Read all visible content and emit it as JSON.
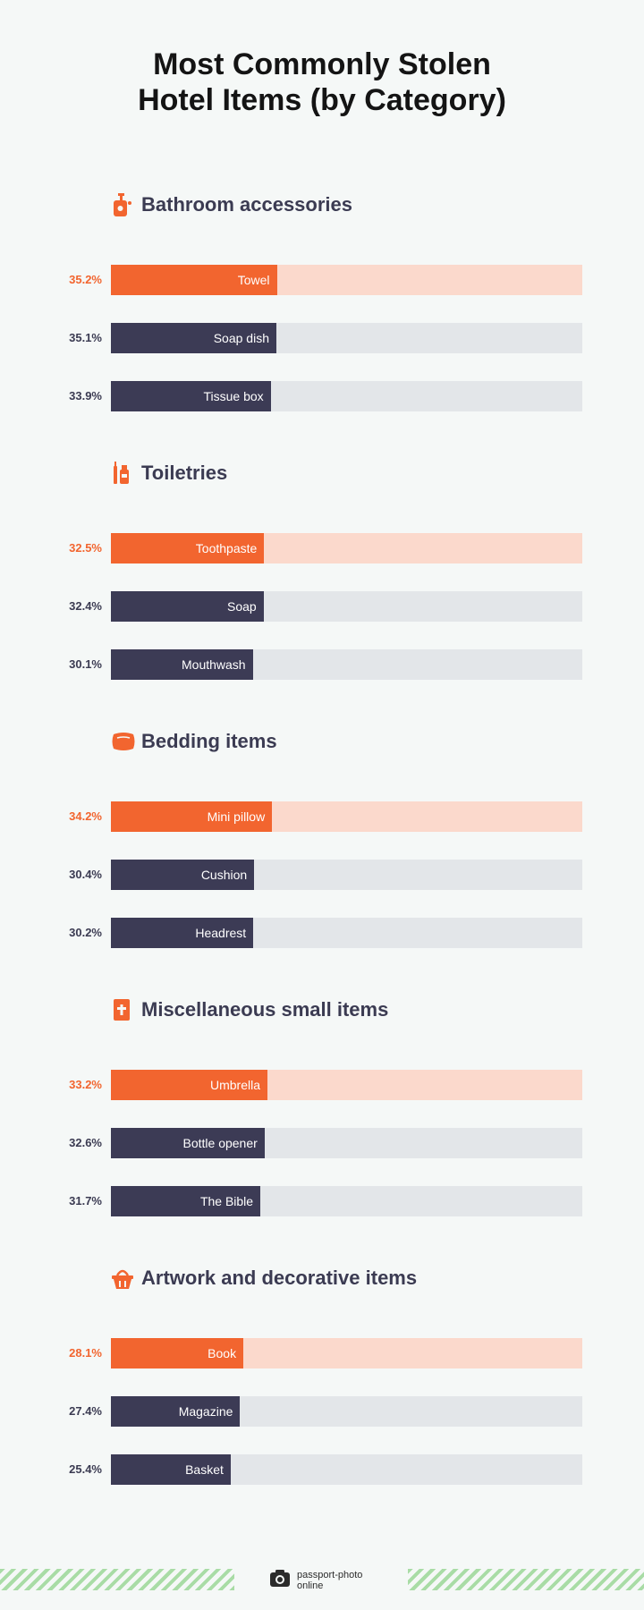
{
  "title": {
    "line1": "Most Commonly Stolen",
    "line2": "Hotel Items (by Category)"
  },
  "colors": {
    "accent": "#f2652f",
    "accent_track": "#fbd9cc",
    "bar": "#3c3b55",
    "track": "#e3e6e9",
    "footer_stripe": "#a9dca6"
  },
  "chart_data": {
    "type": "bar",
    "orientation": "horizontal",
    "xlim": [
      0,
      100
    ],
    "unit": "%",
    "groups": [
      {
        "name": "Bathroom accessories",
        "icon": "soap-dispenser-icon",
        "items": [
          {
            "label": "Towel",
            "value": 35.2,
            "display": "35.2%",
            "highlight": true
          },
          {
            "label": "Soap dish",
            "value": 35.1,
            "display": "35.1%",
            "highlight": false
          },
          {
            "label": "Tissue box",
            "value": 33.9,
            "display": "33.9%",
            "highlight": false
          }
        ]
      },
      {
        "name": "Toiletries",
        "icon": "toiletries-icon",
        "items": [
          {
            "label": "Toothpaste",
            "value": 32.5,
            "display": "32.5%",
            "highlight": true
          },
          {
            "label": "Soap",
            "value": 32.4,
            "display": "32.4%",
            "highlight": false
          },
          {
            "label": "Mouthwash",
            "value": 30.1,
            "display": "30.1%",
            "highlight": false
          }
        ]
      },
      {
        "name": "Bedding items",
        "icon": "pillow-icon",
        "items": [
          {
            "label": "Mini pillow",
            "value": 34.2,
            "display": "34.2%",
            "highlight": true
          },
          {
            "label": "Cushion",
            "value": 30.4,
            "display": "30.4%",
            "highlight": false
          },
          {
            "label": "Headrest",
            "value": 30.2,
            "display": "30.2%",
            "highlight": false
          }
        ]
      },
      {
        "name": "Miscellaneous small items",
        "icon": "bible-icon",
        "items": [
          {
            "label": "Umbrella",
            "value": 33.2,
            "display": "33.2%",
            "highlight": true
          },
          {
            "label": "Bottle opener",
            "value": 32.6,
            "display": "32.6%",
            "highlight": false
          },
          {
            "label": "The Bible",
            "value": 31.7,
            "display": "31.7%",
            "highlight": false
          }
        ]
      },
      {
        "name": "Artwork and decorative items",
        "icon": "basket-icon",
        "items": [
          {
            "label": "Book",
            "value": 28.1,
            "display": "28.1%",
            "highlight": true
          },
          {
            "label": "Magazine",
            "value": 27.4,
            "display": "27.4%",
            "highlight": false
          },
          {
            "label": "Basket",
            "value": 25.4,
            "display": "25.4%",
            "highlight": false
          }
        ]
      }
    ]
  },
  "footer": {
    "logo_icon": "camera-icon",
    "logo_line1": "passport-photo",
    "logo_line2": "online"
  }
}
